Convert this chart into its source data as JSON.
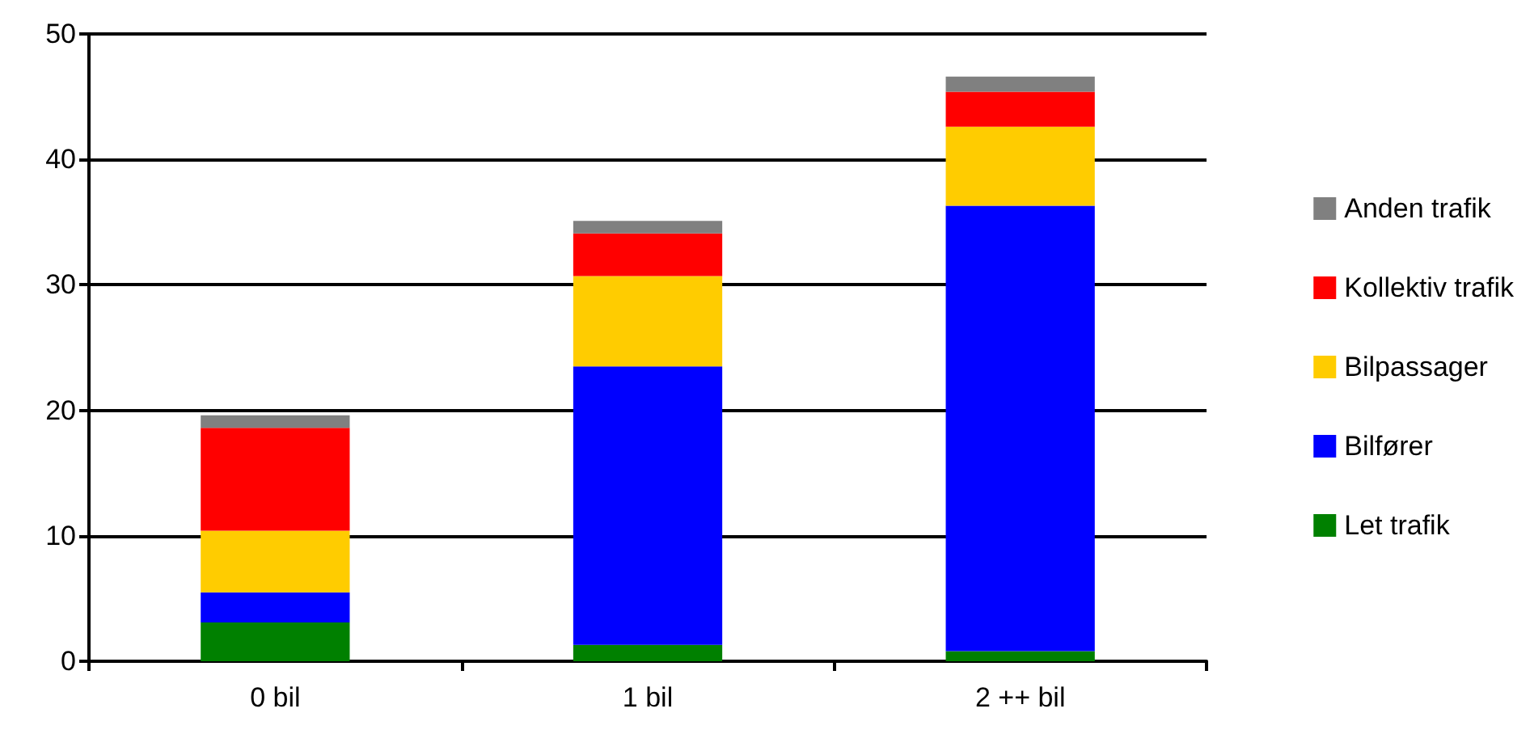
{
  "chart_data": {
    "type": "bar",
    "stacked": true,
    "categories": [
      "0 bil",
      "1 bil",
      "2 ++ bil"
    ],
    "series": [
      {
        "name": "Let trafik",
        "color": "#008000",
        "values": [
          3.1,
          1.3,
          0.8
        ]
      },
      {
        "name": "Bilfører",
        "color": "#0000ff",
        "values": [
          2.4,
          22.2,
          35.5
        ]
      },
      {
        "name": "Bilpassager",
        "color": "#ffcc00",
        "values": [
          4.9,
          7.2,
          6.3
        ]
      },
      {
        "name": "Kollektiv trafik",
        "color": "#ff0000",
        "values": [
          8.2,
          3.4,
          2.8
        ]
      },
      {
        "name": "Anden trafik",
        "color": "#808080",
        "values": [
          1.0,
          1.0,
          1.2
        ]
      }
    ],
    "ylim": [
      0,
      50
    ],
    "yticks": [
      0,
      10,
      20,
      30,
      40,
      50
    ],
    "grid": "y",
    "legend": "right"
  }
}
